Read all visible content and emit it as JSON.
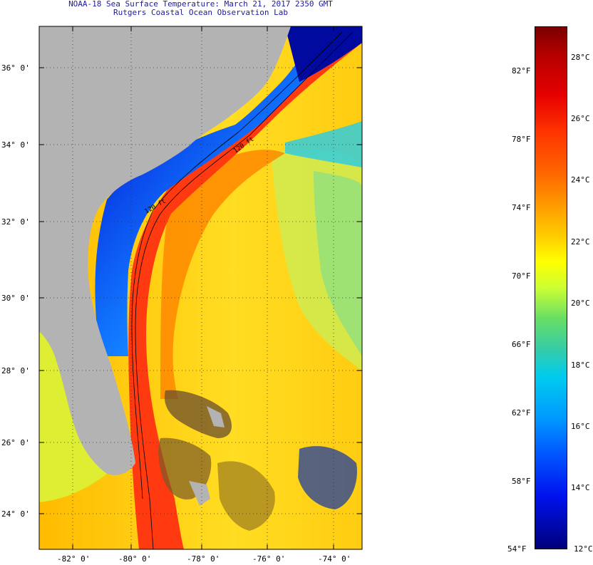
{
  "title": {
    "line1": "NOAA-18 Sea Surface Temperature:  March 21, 2017 2350 GMT",
    "line2": "Rutgers Coastal Ocean Observation Lab"
  },
  "map": {
    "latitude_labels": [
      "36° 0'",
      "34° 0'",
      "32° 0'",
      "30° 0'",
      "28° 0'",
      "26° 0'",
      "24° 0'"
    ],
    "longitude_labels": [
      "-82° 0'",
      "-80° 0'",
      "-78° 0'",
      "-76° 0'",
      "-74° 0'"
    ],
    "isobath_labels": [
      "120 ft",
      "120 ft"
    ],
    "colors": {
      "land": "#b3b3b3",
      "cold_shelf": "#1a66ff",
      "gulf_stream": "#ff3300",
      "offshore": "#ffcc00",
      "cool_offshore": "#33ddaa"
    }
  },
  "colorbar": {
    "fahrenheit_labels": [
      "82°F",
      "78°F",
      "74°F",
      "70°F",
      "66°F",
      "62°F",
      "58°F",
      "54°F"
    ],
    "celsius_labels": [
      "28°C",
      "26°C",
      "24°C",
      "22°C",
      "20°C",
      "18°C",
      "16°C",
      "14°C",
      "12°C"
    ]
  }
}
